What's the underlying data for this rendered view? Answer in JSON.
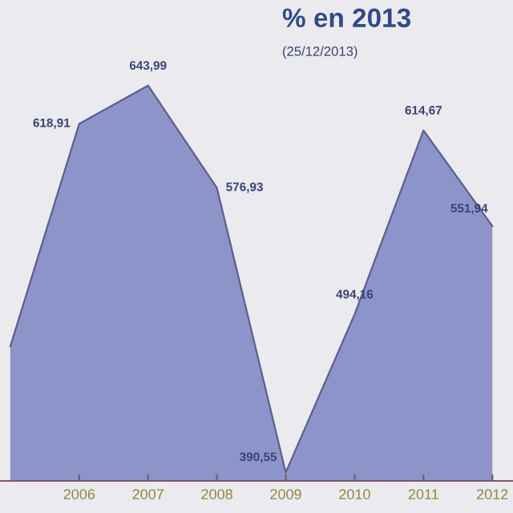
{
  "chart_data": {
    "type": "area",
    "title": "% en 2013",
    "subtitle": "(25/12/2013)",
    "x": [
      2005,
      2006,
      2007,
      2008,
      2009,
      2010,
      2011,
      2012
    ],
    "series": [
      {
        "color": "#8c94c9",
        "values": [
          473.15,
          618.91,
          643.99,
          576.93,
          390.55,
          494.16,
          614.67,
          551.94
        ],
        "value_labels": [
          null,
          "618,91",
          "643,99",
          "576,93",
          "390,55",
          "494,16",
          "614,67",
          "551,94"
        ]
      }
    ],
    "xlim": [
      2004.85,
      2012.3
    ],
    "xticks": [
      2006,
      2007,
      2008,
      2009,
      2010,
      2011,
      2012
    ],
    "ylim": [
      385,
      700
    ],
    "tick_labels": "x",
    "grid": false,
    "legend": false
  }
}
